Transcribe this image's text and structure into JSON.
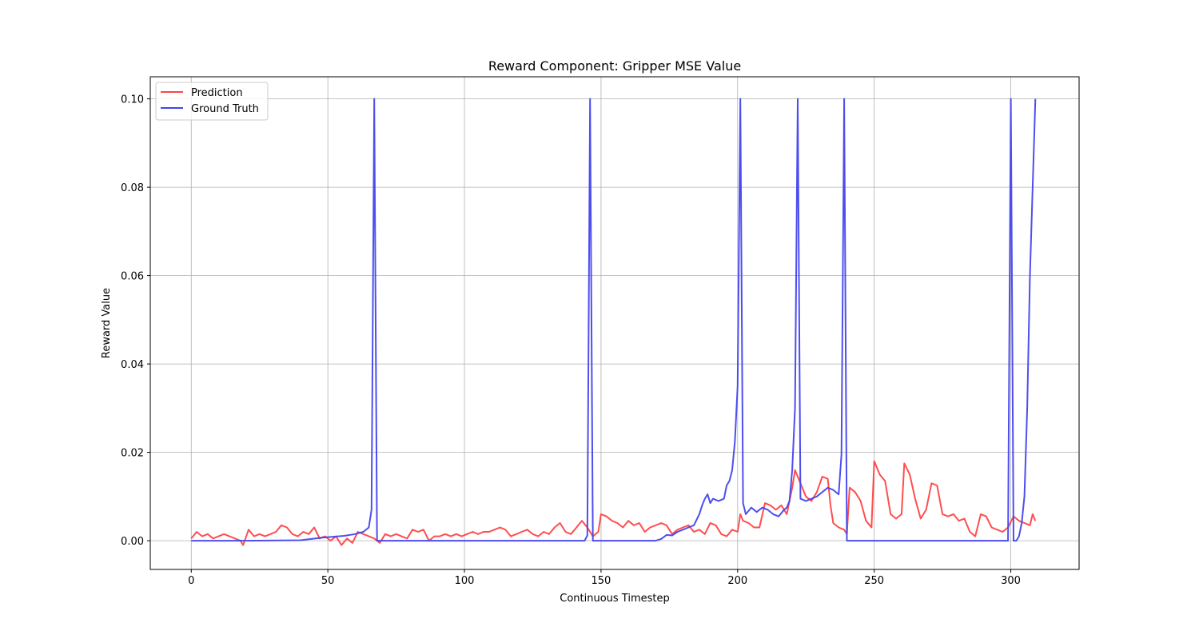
{
  "chart_data": {
    "type": "line",
    "title": "Reward Component: Gripper MSE Value",
    "xlabel": "Continuous Timestep",
    "ylabel": "Reward Value",
    "xlim": [
      -15,
      325
    ],
    "ylim": [
      -0.0065,
      0.105
    ],
    "xticks": [
      0,
      50,
      100,
      150,
      200,
      250,
      300
    ],
    "xtick_labels": [
      "0",
      "50",
      "100",
      "150",
      "200",
      "250",
      "300"
    ],
    "yticks": [
      0.0,
      0.02,
      0.04,
      0.06,
      0.08,
      0.1
    ],
    "ytick_labels": [
      "0.00",
      "0.02",
      "0.04",
      "0.06",
      "0.08",
      "0.10"
    ],
    "grid": true,
    "legend_position": "upper left",
    "series": [
      {
        "name": "Prediction",
        "color": "#ff4444",
        "points": [
          [
            0,
            0.0005
          ],
          [
            2,
            0.002
          ],
          [
            4,
            0.001
          ],
          [
            6,
            0.0015
          ],
          [
            8,
            0.0005
          ],
          [
            10,
            0.001
          ],
          [
            12,
            0.0015
          ],
          [
            14,
            0.001
          ],
          [
            16,
            0.0005
          ],
          [
            18,
            0.0
          ],
          [
            19,
            -0.001
          ],
          [
            21,
            0.0025
          ],
          [
            23,
            0.001
          ],
          [
            25,
            0.0015
          ],
          [
            27,
            0.001
          ],
          [
            29,
            0.0015
          ],
          [
            31,
            0.002
          ],
          [
            33,
            0.0035
          ],
          [
            35,
            0.003
          ],
          [
            37,
            0.0015
          ],
          [
            39,
            0.001
          ],
          [
            41,
            0.002
          ],
          [
            43,
            0.0015
          ],
          [
            45,
            0.003
          ],
          [
            47,
            0.0005
          ],
          [
            49,
            0.001
          ],
          [
            51,
            0.0
          ],
          [
            53,
            0.001
          ],
          [
            55,
            -0.001
          ],
          [
            57,
            0.0005
          ],
          [
            59,
            -0.0005
          ],
          [
            61,
            0.002
          ],
          [
            63,
            0.0015
          ],
          [
            65,
            0.001
          ],
          [
            67,
            0.0005
          ],
          [
            69,
            -0.0005
          ],
          [
            71,
            0.0015
          ],
          [
            73,
            0.001
          ],
          [
            75,
            0.0015
          ],
          [
            77,
            0.001
          ],
          [
            79,
            0.0005
          ],
          [
            81,
            0.0025
          ],
          [
            83,
            0.002
          ],
          [
            85,
            0.0025
          ],
          [
            87,
            0.0
          ],
          [
            89,
            0.001
          ],
          [
            91,
            0.001
          ],
          [
            93,
            0.0015
          ],
          [
            95,
            0.001
          ],
          [
            97,
            0.0015
          ],
          [
            99,
            0.001
          ],
          [
            101,
            0.0015
          ],
          [
            103,
            0.002
          ],
          [
            105,
            0.0015
          ],
          [
            107,
            0.002
          ],
          [
            109,
            0.002
          ],
          [
            111,
            0.0025
          ],
          [
            113,
            0.003
          ],
          [
            115,
            0.0025
          ],
          [
            117,
            0.001
          ],
          [
            119,
            0.0015
          ],
          [
            121,
            0.002
          ],
          [
            123,
            0.0025
          ],
          [
            125,
            0.0015
          ],
          [
            127,
            0.001
          ],
          [
            129,
            0.002
          ],
          [
            131,
            0.0015
          ],
          [
            133,
            0.003
          ],
          [
            135,
            0.004
          ],
          [
            137,
            0.002
          ],
          [
            139,
            0.0015
          ],
          [
            141,
            0.003
          ],
          [
            143,
            0.0045
          ],
          [
            145,
            0.003
          ],
          [
            147,
            0.001
          ],
          [
            148,
            0.0015
          ],
          [
            149,
            0.002
          ],
          [
            150,
            0.006
          ],
          [
            152,
            0.0055
          ],
          [
            154,
            0.0045
          ],
          [
            156,
            0.004
          ],
          [
            158,
            0.003
          ],
          [
            160,
            0.0045
          ],
          [
            162,
            0.0035
          ],
          [
            164,
            0.004
          ],
          [
            166,
            0.002
          ],
          [
            168,
            0.003
          ],
          [
            170,
            0.0035
          ],
          [
            172,
            0.004
          ],
          [
            174,
            0.0035
          ],
          [
            176,
            0.0015
          ],
          [
            178,
            0.0025
          ],
          [
            180,
            0.003
          ],
          [
            182,
            0.0035
          ],
          [
            184,
            0.002
          ],
          [
            186,
            0.0025
          ],
          [
            188,
            0.0015
          ],
          [
            190,
            0.004
          ],
          [
            192,
            0.0035
          ],
          [
            194,
            0.0015
          ],
          [
            196,
            0.001
          ],
          [
            198,
            0.0025
          ],
          [
            200,
            0.002
          ],
          [
            201,
            0.006
          ],
          [
            202,
            0.0045
          ],
          [
            204,
            0.004
          ],
          [
            206,
            0.003
          ],
          [
            208,
            0.003
          ],
          [
            210,
            0.0085
          ],
          [
            212,
            0.008
          ],
          [
            214,
            0.007
          ],
          [
            216,
            0.008
          ],
          [
            218,
            0.006
          ],
          [
            220,
            0.012
          ],
          [
            221,
            0.016
          ],
          [
            223,
            0.013
          ],
          [
            225,
            0.01
          ],
          [
            227,
            0.009
          ],
          [
            229,
            0.011
          ],
          [
            231,
            0.0145
          ],
          [
            233,
            0.014
          ],
          [
            234,
            0.008
          ],
          [
            235,
            0.004
          ],
          [
            237,
            0.003
          ],
          [
            239,
            0.0025
          ],
          [
            240,
            0.0015
          ],
          [
            241,
            0.012
          ],
          [
            243,
            0.011
          ],
          [
            245,
            0.009
          ],
          [
            247,
            0.0045
          ],
          [
            249,
            0.003
          ],
          [
            250,
            0.018
          ],
          [
            252,
            0.015
          ],
          [
            254,
            0.0135
          ],
          [
            256,
            0.006
          ],
          [
            258,
            0.005
          ],
          [
            260,
            0.006
          ],
          [
            261,
            0.0175
          ],
          [
            263,
            0.015
          ],
          [
            265,
            0.0095
          ],
          [
            267,
            0.005
          ],
          [
            269,
            0.007
          ],
          [
            271,
            0.013
          ],
          [
            273,
            0.0125
          ],
          [
            275,
            0.006
          ],
          [
            277,
            0.0055
          ],
          [
            279,
            0.006
          ],
          [
            281,
            0.0045
          ],
          [
            283,
            0.005
          ],
          [
            285,
            0.002
          ],
          [
            287,
            0.001
          ],
          [
            289,
            0.006
          ],
          [
            291,
            0.0055
          ],
          [
            293,
            0.003
          ],
          [
            295,
            0.0025
          ],
          [
            297,
            0.002
          ],
          [
            299,
            0.003
          ],
          [
            301,
            0.0055
          ],
          [
            303,
            0.0045
          ],
          [
            305,
            0.004
          ],
          [
            307,
            0.0035
          ],
          [
            308,
            0.006
          ],
          [
            309,
            0.0045
          ]
        ]
      },
      {
        "name": "Ground Truth",
        "color": "#4444ee",
        "points": [
          [
            0,
            0.0
          ],
          [
            20,
            0.0
          ],
          [
            40,
            0.0001
          ],
          [
            44,
            0.0004
          ],
          [
            48,
            0.0007
          ],
          [
            52,
            0.0009
          ],
          [
            56,
            0.0011
          ],
          [
            60,
            0.0015
          ],
          [
            63,
            0.002
          ],
          [
            65,
            0.003
          ],
          [
            66,
            0.007
          ],
          [
            67,
            0.1
          ],
          [
            68,
            0.0
          ],
          [
            100,
            0.0
          ],
          [
            144,
            0.0
          ],
          [
            145,
            0.0012
          ],
          [
            146,
            0.1
          ],
          [
            147,
            0.0
          ],
          [
            170,
            0.0
          ],
          [
            172,
            0.0004
          ],
          [
            174,
            0.0013
          ],
          [
            176,
            0.0012
          ],
          [
            178,
            0.002
          ],
          [
            180,
            0.0025
          ],
          [
            182,
            0.003
          ],
          [
            184,
            0.0035
          ],
          [
            186,
            0.006
          ],
          [
            187,
            0.008
          ],
          [
            188,
            0.0095
          ],
          [
            189,
            0.0105
          ],
          [
            190,
            0.0085
          ],
          [
            191,
            0.0095
          ],
          [
            193,
            0.009
          ],
          [
            195,
            0.0095
          ],
          [
            196,
            0.0125
          ],
          [
            197,
            0.0135
          ],
          [
            198,
            0.016
          ],
          [
            199,
            0.0225
          ],
          [
            200,
            0.035
          ],
          [
            201,
            0.1
          ],
          [
            202,
            0.0085
          ],
          [
            203,
            0.006
          ],
          [
            205,
            0.0075
          ],
          [
            207,
            0.0065
          ],
          [
            209,
            0.0075
          ],
          [
            211,
            0.007
          ],
          [
            213,
            0.006
          ],
          [
            215,
            0.0055
          ],
          [
            217,
            0.007
          ],
          [
            218,
            0.0075
          ],
          [
            219,
            0.009
          ],
          [
            220,
            0.016
          ],
          [
            221,
            0.03
          ],
          [
            222,
            0.1
          ],
          [
            223,
            0.0095
          ],
          [
            225,
            0.009
          ],
          [
            227,
            0.0095
          ],
          [
            229,
            0.01
          ],
          [
            231,
            0.011
          ],
          [
            233,
            0.012
          ],
          [
            235,
            0.0115
          ],
          [
            237,
            0.0105
          ],
          [
            238,
            0.0195
          ],
          [
            239,
            0.1
          ],
          [
            240,
            0.0
          ],
          [
            299,
            0.0
          ],
          [
            300,
            0.1
          ],
          [
            301,
            0.0
          ],
          [
            302,
            0.0
          ],
          [
            303,
            0.001
          ],
          [
            304,
            0.004
          ],
          [
            305,
            0.01
          ],
          [
            306,
            0.03
          ],
          [
            307,
            0.06
          ],
          [
            309,
            0.1
          ]
        ]
      }
    ]
  }
}
